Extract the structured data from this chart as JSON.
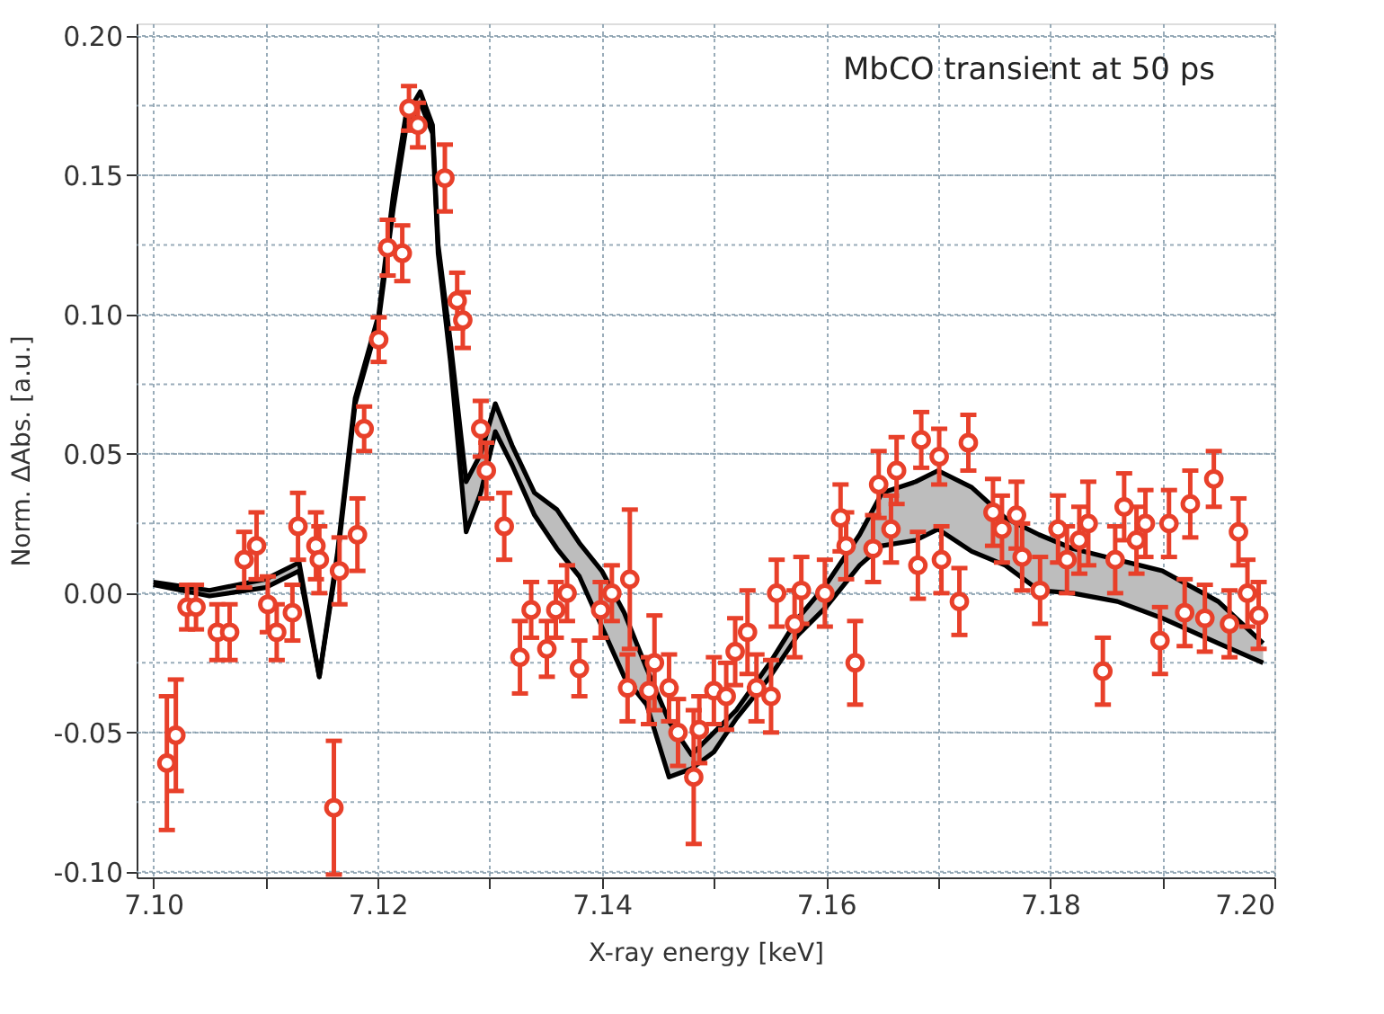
{
  "chart_data": {
    "type": "scatter",
    "xlabel": "X-ray energy [keV]",
    "ylabel": "Norm. ΔAbs. [a.u.]",
    "annotations": [
      "MbCO transient at 50 ps"
    ],
    "xlim": [
      7.0985,
      7.2
    ],
    "ylim": [
      -0.102,
      0.2045
    ],
    "xticks": [
      {
        "value": 7.1,
        "label": "7.10"
      },
      {
        "value": 7.11,
        "label": null
      },
      {
        "value": 7.12,
        "label": "7.12"
      },
      {
        "value": 7.13,
        "label": null
      },
      {
        "value": 7.14,
        "label": "7.14"
      },
      {
        "value": 7.15,
        "label": null
      },
      {
        "value": 7.16,
        "label": "7.16"
      },
      {
        "value": 7.17,
        "label": null
      },
      {
        "value": 7.18,
        "label": "7.18"
      },
      {
        "value": 7.19,
        "label": null
      },
      {
        "value": 7.2,
        "label": "7.20"
      }
    ],
    "yticks": [
      {
        "value": -0.1,
        "label": "-0.10"
      },
      {
        "value": -0.075,
        "label": null
      },
      {
        "value": -0.05,
        "label": "-0.05"
      },
      {
        "value": -0.025,
        "label": null
      },
      {
        "value": 0,
        "label": "0.00"
      },
      {
        "value": 0.025,
        "label": null
      },
      {
        "value": 0.05,
        "label": "0.05"
      },
      {
        "value": 0.075,
        "label": null
      },
      {
        "value": 0.1,
        "label": "0.10"
      },
      {
        "value": 0.125,
        "label": null
      },
      {
        "value": 0.15,
        "label": "0.15"
      },
      {
        "value": 0.175,
        "label": null
      },
      {
        "value": 0.2,
        "label": "0.20"
      }
    ],
    "grid": true,
    "series": [
      {
        "type": "line",
        "color": "#000000",
        "line_style": "solid",
        "x": [
          7.1,
          7.105,
          7.11,
          7.113,
          7.1148,
          7.1164,
          7.118,
          7.1201,
          7.1214,
          7.1225,
          7.1238,
          7.1249,
          7.1254,
          7.1265,
          7.1279,
          7.1292,
          7.1305,
          7.132,
          7.134,
          7.136,
          7.138,
          7.14,
          7.142,
          7.144,
          7.146,
          7.148,
          7.15,
          7.152,
          7.155,
          7.1575,
          7.16,
          7.163,
          7.165,
          7.168,
          7.17,
          7.173,
          7.176,
          7.179,
          7.182,
          7.186,
          7.19,
          7.195,
          7.199
        ],
        "values": [
          0.004,
          0.001,
          0.005,
          0.011,
          -0.03,
          0.014,
          0.07,
          0.1,
          0.143,
          0.171,
          0.18,
          0.168,
          0.125,
          0.09,
          0.04,
          0.05,
          0.068,
          0.053,
          0.036,
          0.03,
          0.018,
          0.008,
          -0.007,
          -0.027,
          -0.046,
          -0.058,
          -0.05,
          -0.042,
          -0.025,
          -0.009,
          0.003,
          0.021,
          0.036,
          0.04,
          0.044,
          0.038,
          0.027,
          0.021,
          0.016,
          0.012,
          0.008,
          -0.003,
          -0.018
        ],
        "upper": [
          0.004,
          0.001,
          0.005,
          0.011,
          -0.03,
          0.014,
          0.07,
          0.1,
          0.143,
          0.171,
          0.18,
          0.168,
          0.125,
          0.09,
          0.04,
          0.05,
          0.068,
          0.053,
          0.036,
          0.03,
          0.018,
          0.008,
          -0.007,
          -0.027,
          -0.046,
          -0.058,
          -0.05,
          -0.042,
          -0.025,
          -0.009,
          0.003,
          0.021,
          0.036,
          0.04,
          0.044,
          0.038,
          0.027,
          0.021,
          0.016,
          0.012,
          0.008,
          -0.003,
          -0.018
        ],
        "lower": [
          0.003,
          -0.001,
          0.002,
          0.008,
          -0.03,
          0.012,
          0.068,
          0.098,
          0.138,
          0.166,
          0.176,
          0.165,
          0.122,
          0.083,
          0.022,
          0.036,
          0.058,
          0.046,
          0.028,
          0.016,
          0.006,
          -0.012,
          -0.03,
          -0.04,
          -0.066,
          -0.063,
          -0.057,
          -0.045,
          -0.03,
          -0.015,
          -0.005,
          0.01,
          0.017,
          0.019,
          0.023,
          0.015,
          0.01,
          0.001,
          0.0,
          -0.003,
          -0.009,
          -0.018,
          -0.025
        ]
      },
      {
        "type": "line",
        "color": "#000000",
        "line_style": "solid",
        "x": [
          7.1,
          7.105,
          7.11,
          7.113,
          7.1148,
          7.1164,
          7.118,
          7.1201,
          7.1214,
          7.1225,
          7.1238,
          7.1249,
          7.1254,
          7.1265,
          7.1279,
          7.1292,
          7.1305,
          7.132,
          7.134,
          7.136,
          7.138,
          7.14,
          7.142,
          7.144,
          7.146,
          7.148,
          7.15,
          7.152,
          7.155,
          7.1575,
          7.16,
          7.163,
          7.165,
          7.168,
          7.17,
          7.173,
          7.176,
          7.179,
          7.182,
          7.186,
          7.19,
          7.195,
          7.199
        ],
        "values": [
          0.003,
          -0.001,
          0.002,
          0.008,
          -0.03,
          0.012,
          0.068,
          0.098,
          0.138,
          0.166,
          0.176,
          0.165,
          0.122,
          0.083,
          0.022,
          0.036,
          0.058,
          0.046,
          0.028,
          0.016,
          0.006,
          -0.012,
          -0.03,
          -0.04,
          -0.066,
          -0.063,
          -0.057,
          -0.045,
          -0.03,
          -0.015,
          -0.005,
          0.01,
          0.017,
          0.019,
          0.023,
          0.015,
          0.01,
          0.001,
          0.0,
          -0.003,
          -0.009,
          -0.018,
          -0.025
        ]
      },
      {
        "color": "#e8402a",
        "marker": "circle",
        "x": [
          7.1012,
          7.102,
          7.103,
          7.1038,
          7.1057,
          7.1068,
          7.1081,
          7.1092,
          7.1102,
          7.111,
          7.1124,
          7.1129,
          7.1145,
          7.1148,
          7.1161,
          7.1166,
          7.1182,
          7.1188,
          7.1201,
          7.1209,
          7.1222,
          7.1228,
          7.1236,
          7.126,
          7.1271,
          7.1276,
          7.1292,
          7.1297,
          7.1313,
          7.1327,
          7.1337,
          7.1351,
          7.1359,
          7.1369,
          7.138,
          7.1399,
          7.1409,
          7.1425,
          7.1423,
          7.1442,
          7.1447,
          7.146,
          7.1468,
          7.1482,
          7.1487,
          7.15,
          7.1511,
          7.1519,
          7.153,
          7.1538,
          7.1551,
          7.1556,
          7.1572,
          7.1578,
          7.1599,
          7.1613,
          7.1618,
          7.1626,
          7.1642,
          7.1647,
          7.1658,
          7.1663,
          7.1682,
          7.1685,
          7.1701,
          7.1703,
          7.1719,
          7.1727,
          7.1749,
          7.1757,
          7.177,
          7.1775,
          7.1791,
          7.1807,
          7.1815,
          7.1826,
          7.1834,
          7.1847,
          7.1858,
          7.1866,
          7.1877,
          7.1885,
          7.1898,
          7.1906,
          7.192,
          7.1925,
          7.1938,
          7.1946,
          7.196,
          7.1968,
          7.1976,
          7.1986
        ],
        "values": [
          -0.061,
          -0.051,
          -0.005,
          -0.005,
          -0.014,
          -0.014,
          0.012,
          0.017,
          -0.004,
          -0.014,
          -0.007,
          0.024,
          0.017,
          0.012,
          -0.077,
          0.008,
          0.021,
          0.059,
          0.091,
          0.124,
          0.122,
          0.174,
          0.168,
          0.149,
          0.105,
          0.098,
          0.059,
          0.044,
          0.024,
          -0.023,
          -0.006,
          -0.02,
          -0.006,
          0.0,
          -0.027,
          -0.006,
          0.0,
          0.005,
          -0.034,
          -0.035,
          -0.025,
          -0.034,
          -0.05,
          -0.066,
          -0.049,
          -0.035,
          -0.037,
          -0.021,
          -0.014,
          -0.034,
          -0.037,
          0.0,
          -0.011,
          0.001,
          0.0,
          0.027,
          0.017,
          -0.025,
          0.016,
          0.039,
          0.023,
          0.044,
          0.01,
          0.055,
          0.049,
          0.012,
          -0.003,
          0.054,
          0.029,
          0.023,
          0.028,
          0.013,
          0.001,
          0.023,
          0.012,
          0.019,
          0.025,
          -0.028,
          0.012,
          0.031,
          0.019,
          0.025,
          -0.017,
          0.025,
          -0.007,
          0.032,
          -0.009,
          0.041,
          -0.011,
          0.022,
          0.0,
          -0.008
        ],
        "errors": [
          0.024,
          0.02,
          0.008,
          0.008,
          0.01,
          0.01,
          0.01,
          0.012,
          0.01,
          0.01,
          0.01,
          0.012,
          0.012,
          0.012,
          0.024,
          0.012,
          0.013,
          0.008,
          0.008,
          0.01,
          0.01,
          0.008,
          0.008,
          0.012,
          0.01,
          0.01,
          0.01,
          0.01,
          0.012,
          0.013,
          0.01,
          0.01,
          0.01,
          0.01,
          0.01,
          0.01,
          0.01,
          0.025,
          0.012,
          0.012,
          0.017,
          0.012,
          0.012,
          0.024,
          0.012,
          0.012,
          0.012,
          0.012,
          0.015,
          0.012,
          0.013,
          0.012,
          0.012,
          0.012,
          0.012,
          0.012,
          0.012,
          0.015,
          0.012,
          0.012,
          0.012,
          0.012,
          0.012,
          0.01,
          0.01,
          0.012,
          0.012,
          0.01,
          0.012,
          0.012,
          0.012,
          0.012,
          0.012,
          0.012,
          0.012,
          0.012,
          0.015,
          0.012,
          0.012,
          0.012,
          0.012,
          0.012,
          0.012,
          0.012,
          0.012,
          0.012,
          0.012,
          0.01,
          0.012,
          0.012,
          0.012,
          0.012
        ]
      }
    ]
  }
}
